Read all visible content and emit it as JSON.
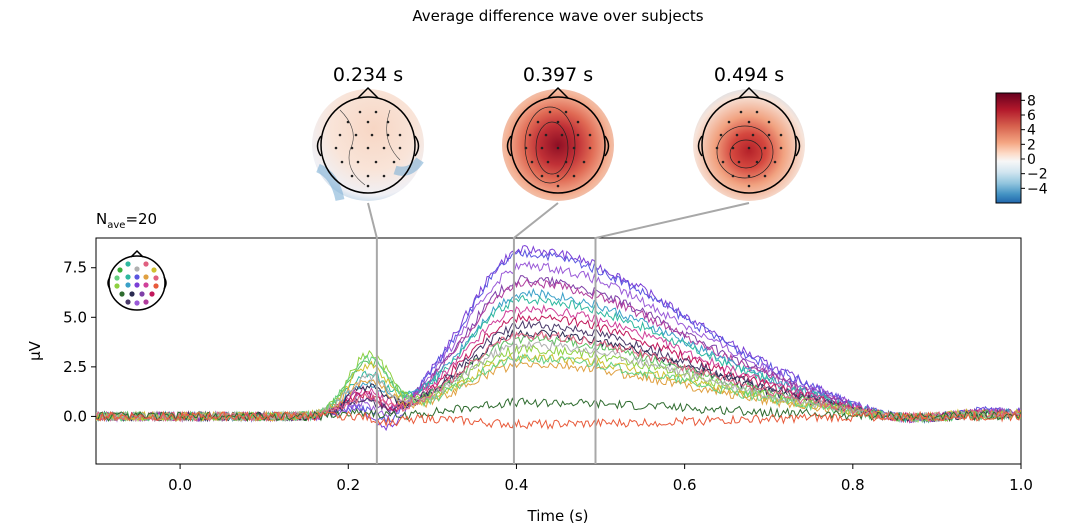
{
  "chart_data": {
    "type": "line",
    "title": "Average difference wave over subjects",
    "nave_label": "N",
    "nave_sub": "ave",
    "nave_value": "=20",
    "xlabel": "Time (s)",
    "ylabel": "µV",
    "xlim": [
      -0.1,
      1.0
    ],
    "ylim": [
      -2.4,
      9.0
    ],
    "xticks": [
      0.0,
      0.2,
      0.4,
      0.6,
      0.8,
      1.0
    ],
    "xtick_labels": [
      "0.0",
      "0.2",
      "0.4",
      "0.6",
      "0.8",
      "1.0"
    ],
    "yticks": [
      0.0,
      2.5,
      5.0,
      7.5
    ],
    "ytick_labels": [
      "0.0",
      "2.5",
      "5.0",
      "7.5"
    ],
    "grid": false,
    "topomap_times": [
      0.234,
      0.397,
      0.494
    ],
    "topomap_labels": [
      "0.234 s",
      "0.397 s",
      "0.494 s"
    ],
    "colorbar": {
      "cmap": "RdBu_r",
      "ticks": [
        8,
        6,
        4,
        2,
        0,
        -2,
        -4
      ],
      "tick_labels": [
        "8",
        "6",
        "4",
        "2",
        "0",
        "−2",
        "−4"
      ],
      "range": [
        -6,
        9
      ]
    },
    "series": [
      {
        "color": "#7b3fd6",
        "peak": 8.4,
        "early": 0.8,
        "late": 1.0,
        "dip": -1.6
      },
      {
        "color": "#5a55e0",
        "peak": 8.2,
        "early": 0.7,
        "late": 1.1,
        "dip": -1.2
      },
      {
        "color": "#9a5ad8",
        "peak": 7.6,
        "early": 0.9,
        "late": 0.9,
        "dip": -1.0
      },
      {
        "color": "#7f3fa8",
        "peak": 6.9,
        "early": 1.2,
        "late": 0.8,
        "dip": -0.9
      },
      {
        "color": "#b03c9c",
        "peak": 6.7,
        "early": 1.4,
        "late": 0.7,
        "dip": -0.8
      },
      {
        "color": "#3aa0c8",
        "peak": 6.2,
        "early": 1.8,
        "late": 0.6,
        "dip": -0.5
      },
      {
        "color": "#2fb8a0",
        "peak": 5.9,
        "early": 2.2,
        "late": 0.5,
        "dip": -0.4
      },
      {
        "color": "#d0409a",
        "peak": 5.4,
        "early": 1.5,
        "late": 0.6,
        "dip": -0.6
      },
      {
        "color": "#c2185b",
        "peak": 5.0,
        "early": 1.3,
        "late": 0.5,
        "dip": -0.7
      },
      {
        "color": "#4a3a6a",
        "peak": 4.6,
        "early": 1.0,
        "late": 0.4,
        "dip": -0.6
      },
      {
        "color": "#2a2a50",
        "peak": 4.2,
        "early": 1.6,
        "late": 0.3,
        "dip": -0.4
      },
      {
        "color": "#5cc060",
        "peak": 3.9,
        "early": 2.8,
        "late": 0.4,
        "dip": -0.2
      },
      {
        "color": "#8ed040",
        "peak": 3.4,
        "early": 3.1,
        "late": 0.3,
        "dip": -0.1
      },
      {
        "color": "#d0c030",
        "peak": 3.0,
        "early": 2.6,
        "late": 0.6,
        "dip": -0.2
      },
      {
        "color": "#e0a040",
        "peak": 2.6,
        "early": 2.0,
        "late": 0.3,
        "dip": -0.3
      },
      {
        "color": "#66d080",
        "peak": 2.9,
        "early": 2.9,
        "late": 0.2,
        "dip": -0.1
      },
      {
        "color": "#b0b0b0",
        "peak": 3.6,
        "early": 2.1,
        "late": 0.4,
        "dip": -0.3
      },
      {
        "color": "#e06080",
        "peak": 4.1,
        "early": 1.1,
        "late": 0.5,
        "dip": -0.5
      },
      {
        "color": "#2e6b2e",
        "peak": 0.7,
        "early": 0.3,
        "late": 0.1,
        "dip": -0.2
      },
      {
        "color": "#e85a3a",
        "peak": -0.4,
        "early": 0.1,
        "late": 0.0,
        "dip": -0.3
      }
    ]
  }
}
